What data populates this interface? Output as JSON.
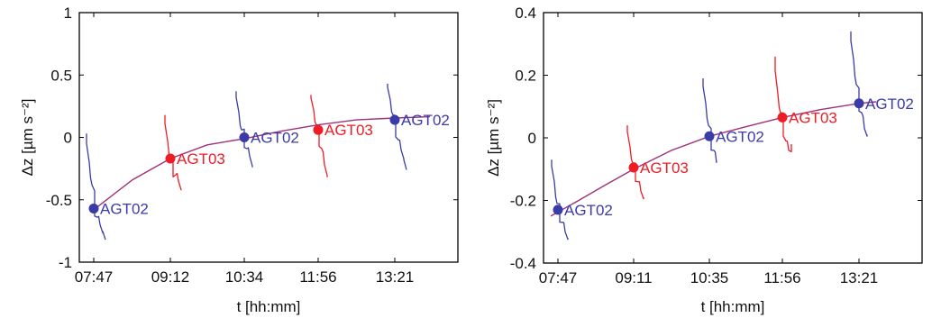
{
  "chart_data": [
    {
      "type": "line",
      "xlabel": "t [hh:mm]",
      "ylabel": "Δz [µm s⁻²]",
      "ylim": [
        -1,
        1
      ],
      "yticks": [
        -1,
        -0.5,
        0,
        0.5,
        1
      ],
      "ytick_labels": [
        "-1",
        "-0.5",
        "0",
        "0.5",
        "1"
      ],
      "xlim": [
        "07:31",
        "14:31"
      ],
      "xtick_labels": [
        "07:47",
        "09:12",
        "10:34",
        "11:56",
        "13:21"
      ],
      "grid": false,
      "colors": {
        "AGT02": "#3b3ba8",
        "AGT03": "#ee1c24",
        "fit": "#a0307a"
      },
      "fit_curve": {
        "x": [
          "07:47",
          "08:30",
          "09:12",
          "09:53",
          "10:34",
          "11:15",
          "11:56",
          "12:38",
          "13:21",
          "14:00"
        ],
        "y": [
          -0.58,
          -0.34,
          -0.17,
          -0.06,
          -0.01,
          0.05,
          0.1,
          0.14,
          0.155,
          0.165
        ]
      },
      "sessions": [
        {
          "label": "AGT02",
          "instrument": "AGT02",
          "time": "07:47",
          "value": -0.57,
          "trace": [
            [
              "07:39",
              0.03
            ],
            [
              "07:42",
              -0.2
            ],
            [
              "07:45",
              -0.38
            ],
            [
              "07:48",
              -0.55
            ],
            [
              "07:51",
              -0.64
            ],
            [
              "07:54",
              -0.7
            ],
            [
              "07:57",
              -0.76
            ],
            [
              "08:00",
              -0.82
            ]
          ]
        },
        {
          "label": "AGT03",
          "instrument": "AGT03",
          "time": "09:12",
          "value": -0.17,
          "trace": [
            [
              "09:06",
              0.18
            ],
            [
              "09:09",
              -0.03
            ],
            [
              "09:12",
              -0.16
            ],
            [
              "09:15",
              -0.26
            ],
            [
              "09:18",
              -0.3
            ],
            [
              "09:21",
              -0.35
            ],
            [
              "09:24",
              -0.42
            ]
          ]
        },
        {
          "label": "AGT02",
          "instrument": "AGT02",
          "time": "10:34",
          "value": 0.0,
          "trace": [
            [
              "10:25",
              0.37
            ],
            [
              "10:28",
              0.2
            ],
            [
              "10:31",
              0.06
            ],
            [
              "10:34",
              0.0
            ],
            [
              "10:37",
              -0.09
            ],
            [
              "10:40",
              -0.15
            ],
            [
              "10:43",
              -0.24
            ]
          ]
        },
        {
          "label": "AGT03",
          "instrument": "AGT03",
          "time": "11:56",
          "value": 0.06,
          "trace": [
            [
              "11:48",
              0.34
            ],
            [
              "11:51",
              0.22
            ],
            [
              "11:54",
              0.1
            ],
            [
              "11:57",
              0.02
            ],
            [
              "12:00",
              -0.09
            ],
            [
              "12:03",
              -0.22
            ],
            [
              "12:06",
              -0.32
            ]
          ]
        },
        {
          "label": "AGT02",
          "instrument": "AGT02",
          "time": "13:21",
          "value": 0.14,
          "trace": [
            [
              "13:13",
              0.43
            ],
            [
              "13:16",
              0.3
            ],
            [
              "13:19",
              0.18
            ],
            [
              "13:22",
              0.1
            ],
            [
              "13:25",
              -0.02
            ],
            [
              "13:28",
              -0.1
            ],
            [
              "13:31",
              -0.17
            ],
            [
              "13:34",
              -0.26
            ]
          ]
        }
      ]
    },
    {
      "type": "line",
      "xlabel": "t [hh:mm]",
      "ylabel": "Δz [µm s⁻²]",
      "ylim": [
        -0.4,
        0.4
      ],
      "yticks": [
        -0.4,
        -0.2,
        0,
        0.2,
        0.4
      ],
      "ytick_labels": [
        "-0.4",
        "-0.2",
        "0",
        "0.2",
        "0.4"
      ],
      "xlim": [
        "07:31",
        "14:31"
      ],
      "xtick_labels": [
        "07:47",
        "09:11",
        "10:35",
        "11:56",
        "13:21"
      ],
      "grid": false,
      "colors": {
        "AGT02": "#3b3ba8",
        "AGT03": "#ee1c24",
        "fit": "#a0307a"
      },
      "fit_curve": {
        "x": [
          "07:39",
          "08:10",
          "08:40",
          "09:11",
          "09:53",
          "10:35",
          "11:15",
          "11:56",
          "12:38",
          "13:21",
          "13:40"
        ],
        "y": [
          -0.25,
          -0.2,
          -0.15,
          -0.1,
          -0.04,
          0.005,
          0.035,
          0.065,
          0.09,
          0.11,
          0.115
        ]
      },
      "sessions": [
        {
          "label": "AGT02",
          "instrument": "AGT02",
          "time": "07:47",
          "value": -0.23,
          "trace": [
            [
              "07:40",
              -0.07
            ],
            [
              "07:43",
              -0.14
            ],
            [
              "07:46",
              -0.21
            ],
            [
              "07:49",
              -0.24
            ],
            [
              "07:52",
              -0.27
            ],
            [
              "07:55",
              -0.3
            ],
            [
              "07:58",
              -0.32
            ]
          ]
        },
        {
          "label": "AGT03",
          "instrument": "AGT03",
          "time": "09:11",
          "value": -0.095,
          "trace": [
            [
              "09:04",
              0.04
            ],
            [
              "09:07",
              -0.03
            ],
            [
              "09:10",
              -0.08
            ],
            [
              "09:13",
              -0.11
            ],
            [
              "09:16",
              -0.14
            ],
            [
              "09:19",
              -0.17
            ],
            [
              "09:22",
              -0.19
            ]
          ]
        },
        {
          "label": "AGT02",
          "instrument": "AGT02",
          "time": "10:35",
          "value": 0.005,
          "trace": [
            [
              "10:28",
              0.19
            ],
            [
              "10:31",
              0.11
            ],
            [
              "10:34",
              0.04
            ],
            [
              "10:37",
              -0.01
            ],
            [
              "10:40",
              -0.04
            ],
            [
              "10:43",
              -0.08
            ]
          ]
        },
        {
          "label": "AGT03",
          "instrument": "AGT03",
          "time": "11:56",
          "value": 0.065,
          "trace": [
            [
              "11:48",
              0.26
            ],
            [
              "11:51",
              0.14
            ],
            [
              "11:54",
              0.08
            ],
            [
              "11:57",
              0.05
            ],
            [
              "12:00",
              -0.01
            ],
            [
              "12:03",
              -0.04
            ],
            [
              "12:06",
              -0.02
            ]
          ]
        },
        {
          "label": "AGT02",
          "instrument": "AGT02",
          "time": "13:21",
          "value": 0.11,
          "trace": [
            [
              "13:12",
              0.34
            ],
            [
              "13:15",
              0.25
            ],
            [
              "13:18",
              0.17
            ],
            [
              "13:21",
              0.12
            ],
            [
              "13:24",
              0.08
            ],
            [
              "13:27",
              0.03
            ],
            [
              "13:30",
              0.01
            ]
          ]
        }
      ]
    }
  ]
}
